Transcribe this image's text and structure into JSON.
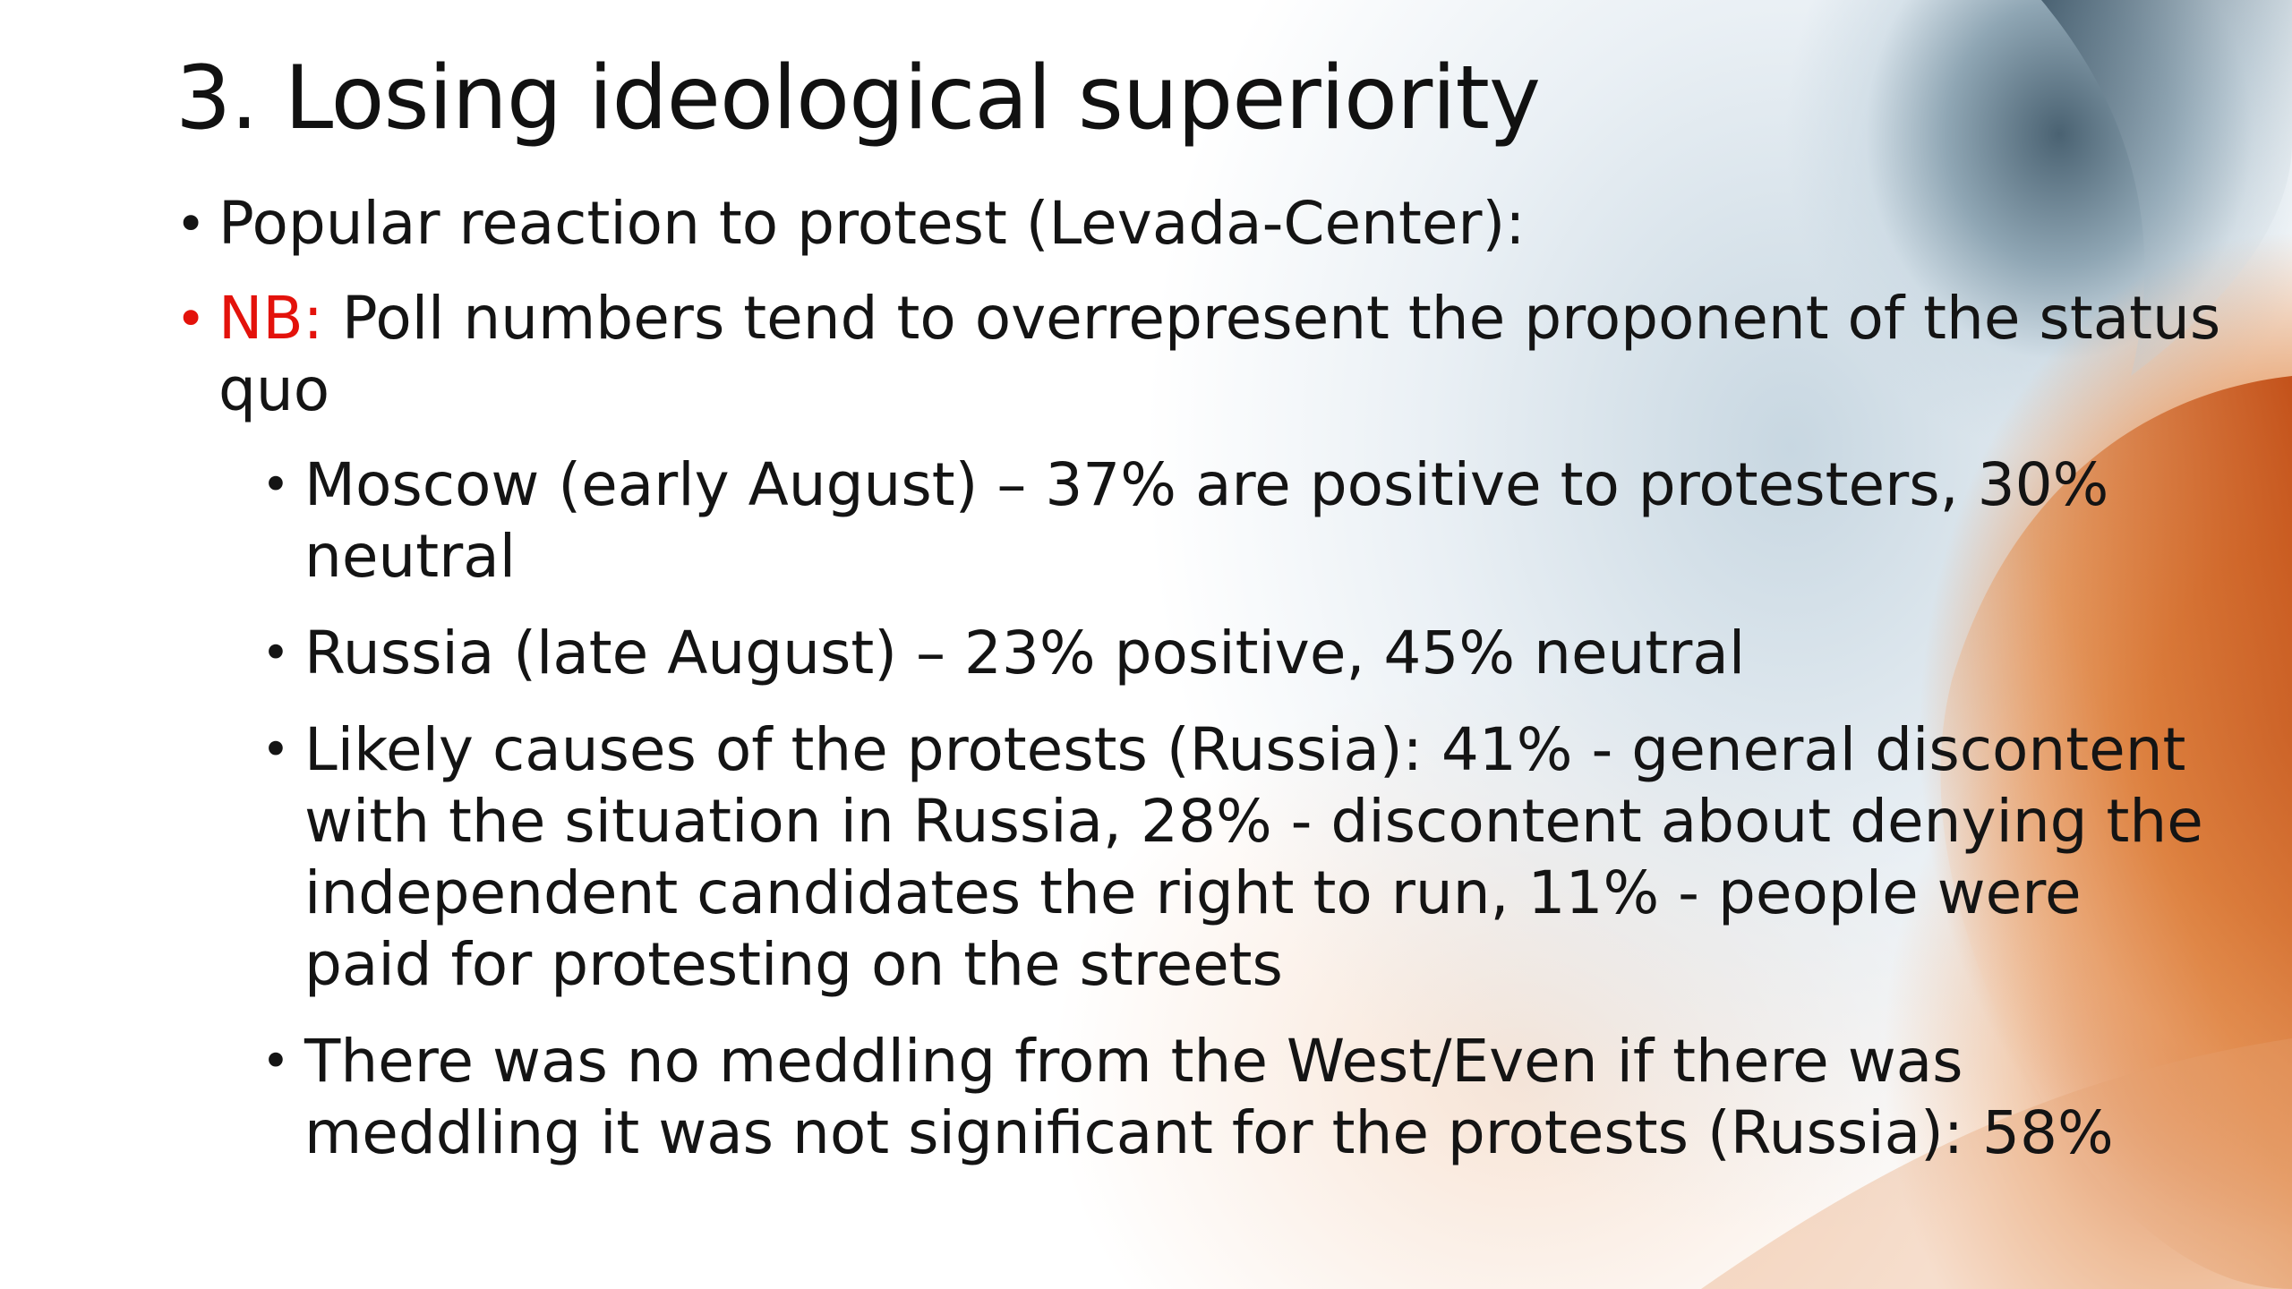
{
  "slide": {
    "title": "3. Losing ideological superiority",
    "bullet_glyph": "•",
    "bullets": [
      {
        "text": "Popular reaction to protest (Levada-Center):"
      },
      {
        "label": "NB:",
        "text": " Poll numbers tend to overrepresent the proponent of the status quo"
      }
    ],
    "sub_bullets": [
      {
        "text": "Moscow (early August) – 37% are positive to protesters, 30% neutral"
      },
      {
        "text": "Russia (late August) – 23% positive, 45% neutral"
      },
      {
        "text": "Likely causes of the protests (Russia): 41% - general discontent with the situation in Russia, 28% - discontent about denying the independent candidates the right to run, 11% - people were paid for protesting on the streets"
      },
      {
        "text": "There was no meddling from the West/Even if there was meddling it was not significant for the protests (Russia): 58%"
      }
    ]
  },
  "colors": {
    "text": "#141414",
    "accent_red": "#e3120b",
    "background_orange": "#d9732f",
    "background_slate": "#4a6272"
  }
}
